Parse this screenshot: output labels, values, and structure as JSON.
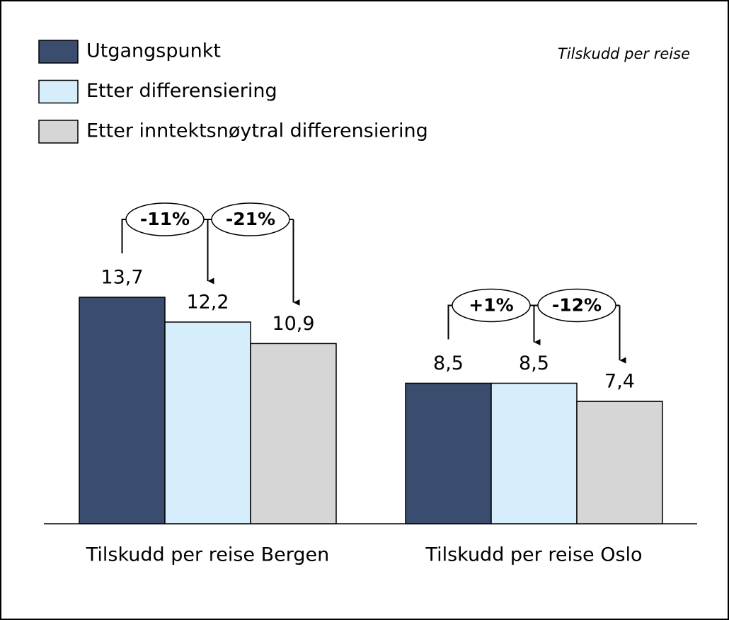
{
  "chart_data": {
    "type": "bar",
    "subtitle": "Tilskudd per reise",
    "categories": [
      "Tilskudd per reise Bergen",
      "Tilskudd per reise Oslo"
    ],
    "series": [
      {
        "name": "Utgangspunkt",
        "color": "#3b4d6e",
        "values": [
          13.7,
          8.5
        ],
        "value_labels": [
          "13,7",
          "8,5"
        ]
      },
      {
        "name": "Etter differensiering",
        "color": "#d6edfb",
        "values": [
          12.2,
          8.5
        ],
        "value_labels": [
          "12,2",
          "8,5"
        ]
      },
      {
        "name": "Etter inntektsnøytral differensiering",
        "color": "#d6d6d6",
        "values": [
          10.9,
          7.4
        ],
        "value_labels": [
          "10,9",
          "7,4"
        ]
      }
    ],
    "annotations": [
      "-11%",
      "-21%",
      "+1%",
      "-12%"
    ],
    "ylim": [
      0,
      14
    ]
  }
}
